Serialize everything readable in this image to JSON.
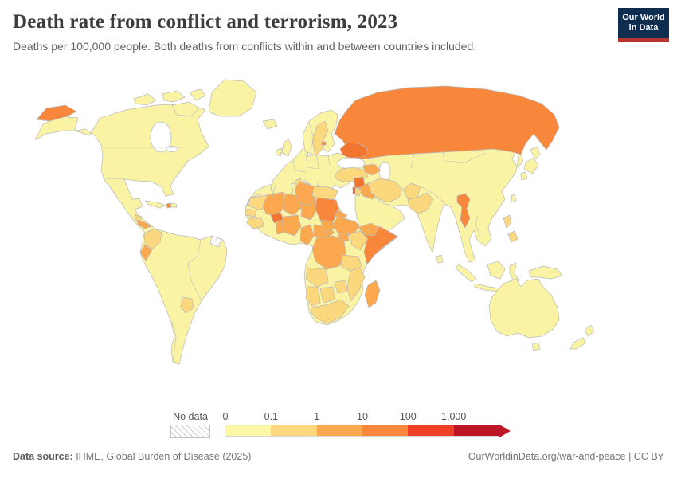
{
  "header": {
    "title": "Death rate from conflict and terrorism, 2023",
    "subtitle": "Deaths per 100,000 people. Both deaths from conflicts within and between countries included.",
    "logo": {
      "line1": "Our World",
      "line2": "in Data",
      "bg_color": "#0d2e51",
      "accent_color": "#b5342c"
    }
  },
  "legend": {
    "no_data_label": "No data",
    "ticks": [
      "0",
      "0.1",
      "1",
      "10",
      "100",
      "1,000"
    ],
    "bin_colors": [
      "#FBF7A6",
      "#FDD87E",
      "#FCA84D",
      "#F8873C",
      "#EF4027",
      "#BD1727"
    ],
    "arrow_color": "#BD1727"
  },
  "footer": {
    "source_label": "Data source:",
    "source_value": " IHME, Global Burden of Disease (2025)",
    "link": "OurWorldinData.org/war-and-peace",
    "separator": " | ",
    "license": "CC BY"
  },
  "chart_data": {
    "type": "choropleth",
    "title": "Death rate from conflict and terrorism, 2023",
    "unit": "Deaths per 100,000 people",
    "scale": {
      "type": "log",
      "stops": [
        0,
        0.1,
        1,
        10,
        100,
        1000
      ],
      "colors": [
        "#FBF7A6",
        "#FDD87E",
        "#FCA84D",
        "#F8873C",
        "#EF4027",
        "#BD1727"
      ]
    },
    "palette": {
      "p0": "#FAF3A3",
      "p1": "#FBD77E",
      "p2": "#FBA84E",
      "p3": "#F8873C",
      "p3d": "#F2752F",
      "p4": "#EE4123"
    },
    "level_meaning": {
      "p0": "0-0.1",
      "p1": "0.1-1",
      "p2": "1-10",
      "p3": "10-100",
      "p3d": "10-100 (upper)",
      "p4": "100-1000",
      "nodata": "No data"
    },
    "regions": [
      {
        "id": "north-america-mainland",
        "name": "United States, Canada, Mexico & Central America",
        "level": "p0"
      },
      {
        "id": "canadian-archipelago",
        "name": "Canadian Arctic Archipelago",
        "level": "p0"
      },
      {
        "id": "greenland",
        "name": "Greenland",
        "level": "p0"
      },
      {
        "id": "cuba",
        "name": "Cuba",
        "level": "p0"
      },
      {
        "id": "dominican-republic",
        "name": "Dominican Republic",
        "level": "p0"
      },
      {
        "id": "haiti",
        "name": "Haiti",
        "level": "p3"
      },
      {
        "id": "honduras",
        "name": "Honduras",
        "level": "p2"
      },
      {
        "id": "guatemala",
        "name": "Guatemala",
        "level": "p1"
      },
      {
        "id": "south-america-mainland",
        "name": "South America",
        "level": "p0"
      },
      {
        "id": "colombia",
        "name": "Colombia",
        "level": "p1"
      },
      {
        "id": "ecuador",
        "name": "Ecuador",
        "level": "p2"
      },
      {
        "id": "paraguay",
        "name": "Paraguay",
        "level": "p1"
      },
      {
        "id": "french-guiana",
        "name": "French Guiana",
        "level": "nodata"
      },
      {
        "id": "europe-mainland",
        "name": "Europe",
        "level": "p0"
      },
      {
        "id": "british-isles",
        "name": "United Kingdom & Ireland",
        "level": "p0"
      },
      {
        "id": "iceland",
        "name": "Iceland",
        "level": "p0"
      },
      {
        "id": "scandinavia",
        "name": "Norway & Finland",
        "level": "p0"
      },
      {
        "id": "sweden",
        "name": "Sweden",
        "level": "p1"
      },
      {
        "id": "russia",
        "name": "Russia",
        "level": "p3"
      },
      {
        "id": "russia-chukotka",
        "name": "Russia (Chukotka)",
        "level": "p3"
      },
      {
        "id": "kaliningrad",
        "name": "Russia (Kaliningrad)",
        "level": "p3"
      },
      {
        "id": "ukraine",
        "name": "Ukraine",
        "level": "p3d"
      },
      {
        "id": "africa-mainland",
        "name": "Africa",
        "level": "p0"
      },
      {
        "id": "western-sahara",
        "name": "Western Sahara",
        "level": "nodata"
      },
      {
        "id": "mauritania",
        "name": "Mauritania",
        "level": "p1"
      },
      {
        "id": "senegal",
        "name": "Senegal",
        "level": "p1"
      },
      {
        "id": "guinea",
        "name": "Guinea",
        "level": "p1"
      },
      {
        "id": "mali",
        "name": "Mali",
        "level": "p2"
      },
      {
        "id": "burkina-faso",
        "name": "Burkina Faso",
        "level": "p3d"
      },
      {
        "id": "niger",
        "name": "Niger",
        "level": "p2"
      },
      {
        "id": "chad",
        "name": "Chad",
        "level": "p2"
      },
      {
        "id": "nigeria",
        "name": "Nigeria",
        "level": "p2"
      },
      {
        "id": "benin-togo",
        "name": "Benin & Togo",
        "level": "p2"
      },
      {
        "id": "libya",
        "name": "Libya",
        "level": "p2"
      },
      {
        "id": "egypt",
        "name": "Egypt",
        "level": "p1"
      },
      {
        "id": "tunisia",
        "name": "Tunisia",
        "level": "p1"
      },
      {
        "id": "sudan",
        "name": "Sudan",
        "level": "p3"
      },
      {
        "id": "south-sudan",
        "name": "South Sudan",
        "level": "p2"
      },
      {
        "id": "eritrea",
        "name": "Eritrea",
        "level": "p2"
      },
      {
        "id": "ethiopia",
        "name": "Ethiopia",
        "level": "p2"
      },
      {
        "id": "somalia",
        "name": "Somalia",
        "level": "p3"
      },
      {
        "id": "uganda",
        "name": "Uganda",
        "level": "p2"
      },
      {
        "id": "kenya",
        "name": "Kenya",
        "level": "p1"
      },
      {
        "id": "drc",
        "name": "Democratic Republic of Congo",
        "level": "p2"
      },
      {
        "id": "cameroon",
        "name": "Cameroon",
        "level": "p2"
      },
      {
        "id": "central-african-republic",
        "name": "Central African Republic",
        "level": "p2"
      },
      {
        "id": "tanzania",
        "name": "Tanzania",
        "level": "p1"
      },
      {
        "id": "angola",
        "name": "Angola",
        "level": "p1"
      },
      {
        "id": "zimbabwe",
        "name": "Zimbabwe",
        "level": "p1"
      },
      {
        "id": "mozambique",
        "name": "Mozambique",
        "level": "p1"
      },
      {
        "id": "namibia",
        "name": "Namibia",
        "level": "p1"
      },
      {
        "id": "botswana",
        "name": "Botswana",
        "level": "p1"
      },
      {
        "id": "south-africa",
        "name": "South Africa",
        "level": "p1"
      },
      {
        "id": "madagascar",
        "name": "Madagascar",
        "level": "p2"
      },
      {
        "id": "arabia",
        "name": "Saudi Arabia & Gulf states",
        "level": "p0"
      },
      {
        "id": "yemen",
        "name": "Yemen",
        "level": "p2"
      },
      {
        "id": "jordan",
        "name": "Jordan",
        "level": "p1"
      },
      {
        "id": "palestine",
        "name": "Palestine",
        "level": "p4"
      },
      {
        "id": "turkey",
        "name": "Turkey",
        "level": "p1"
      },
      {
        "id": "syria",
        "name": "Syria",
        "level": "p3d"
      },
      {
        "id": "iraq",
        "name": "Iraq",
        "level": "p2"
      },
      {
        "id": "caucasus",
        "name": "Armenia, Georgia & Azerbaijan",
        "level": "p2"
      },
      {
        "id": "iran",
        "name": "Iran",
        "level": "p1"
      },
      {
        "id": "afghanistan",
        "name": "Afghanistan",
        "level": "p1"
      },
      {
        "id": "pakistan",
        "name": "Pakistan",
        "level": "p1"
      },
      {
        "id": "asia-mainland",
        "name": "Asia",
        "level": "p0"
      },
      {
        "id": "myanmar",
        "name": "Myanmar",
        "level": "p3"
      },
      {
        "id": "philippines",
        "name": "Philippines",
        "level": "p1"
      },
      {
        "id": "sri-lanka",
        "name": "Sri Lanka",
        "level": "p0"
      },
      {
        "id": "taiwan",
        "name": "Taiwan",
        "level": "p0"
      },
      {
        "id": "japan",
        "name": "Japan",
        "level": "p0"
      },
      {
        "id": "indonesia",
        "name": "Indonesia & Malaysia islands",
        "level": "p0"
      },
      {
        "id": "new-guinea",
        "name": "New Guinea",
        "level": "p0"
      },
      {
        "id": "australia",
        "name": "Australia",
        "level": "p0"
      },
      {
        "id": "tasmania",
        "name": "Tasmania",
        "level": "p0"
      },
      {
        "id": "new-zealand",
        "name": "New Zealand",
        "level": "p0"
      }
    ]
  }
}
